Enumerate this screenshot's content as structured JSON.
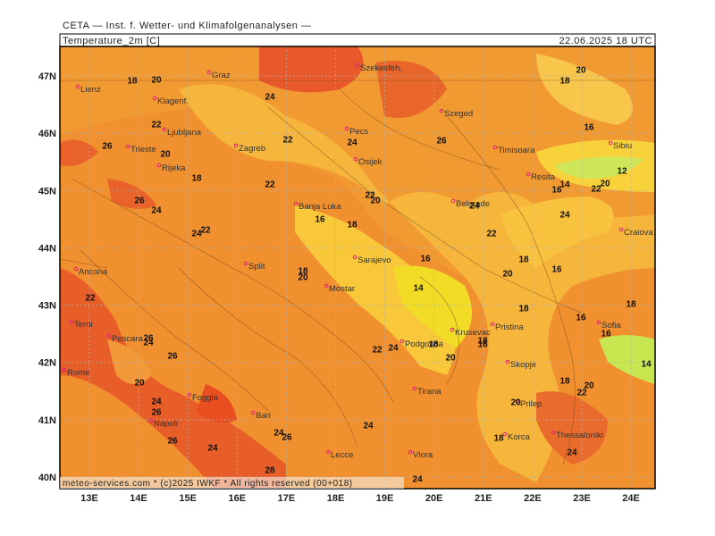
{
  "header": {
    "institute": "CETA — Inst. f. Wetter- und Klimafolgenanalysen —",
    "field": "Temperature_2m [C]",
    "valid_time": "22.06.2025 18 UTC",
    "footer": "meteo-services.com * (c)2025 IWKF * All rights reserved (00+018)"
  },
  "map": {
    "lon_ticks": [
      {
        "value": 13,
        "label": "13E"
      },
      {
        "value": 14,
        "label": "14E"
      },
      {
        "value": 15,
        "label": "15E"
      },
      {
        "value": 16,
        "label": "16E"
      },
      {
        "value": 17,
        "label": "17E"
      },
      {
        "value": 18,
        "label": "18E"
      },
      {
        "value": 19,
        "label": "19E"
      },
      {
        "value": 20,
        "label": "20E"
      },
      {
        "value": 21,
        "label": "21E"
      },
      {
        "value": 22,
        "label": "22E"
      },
      {
        "value": 23,
        "label": "23E"
      },
      {
        "value": 24,
        "label": "24E"
      }
    ],
    "lat_ticks": [
      {
        "value": 40,
        "label": "40N"
      },
      {
        "value": 41,
        "label": "41N"
      },
      {
        "value": 42,
        "label": "42N"
      },
      {
        "value": 43,
        "label": "43N"
      },
      {
        "value": 44,
        "label": "44N"
      },
      {
        "value": 45,
        "label": "45N"
      },
      {
        "value": 46,
        "label": "46N"
      },
      {
        "value": 47,
        "label": "47N"
      }
    ],
    "cities": [
      "Graz",
      "Szekesfeh.",
      "Lienz",
      "Klagenf.",
      "Szeged",
      "Ljubljana",
      "Pecs",
      "Zagreb",
      "Timisoara",
      "Sibiu",
      "Trieste",
      "Osijek",
      "Rijeka",
      "Resita",
      "Banja Luka",
      "Belgrade",
      "Craiova",
      "Sarajevo",
      "Split",
      "Mostar",
      "Ancona",
      "Pristina",
      "Sofia",
      "Terni",
      "Pescara",
      "Krusevac",
      "Podgorica",
      "Skopje",
      "Rome",
      "Tirana",
      "Foggia",
      "Prilep",
      "Bari",
      "Napoli",
      "Thessaloniki",
      "Korca",
      "Vlora",
      "Lecce"
    ],
    "contour_labels": [
      20,
      18,
      24,
      20,
      18,
      22,
      16,
      26,
      20,
      22,
      24,
      26,
      12,
      18,
      22,
      14,
      16,
      20,
      22,
      26,
      24,
      16,
      18,
      22,
      20,
      24,
      24,
      22,
      24,
      22,
      18,
      16,
      16,
      18,
      20,
      20,
      14,
      22,
      18,
      16,
      18,
      26,
      24,
      16,
      22,
      24,
      18,
      18,
      16,
      20,
      26,
      14,
      20,
      18,
      20,
      22,
      24,
      26,
      20,
      24,
      24,
      26,
      18,
      26,
      24,
      28,
      24,
      24
    ]
  }
}
